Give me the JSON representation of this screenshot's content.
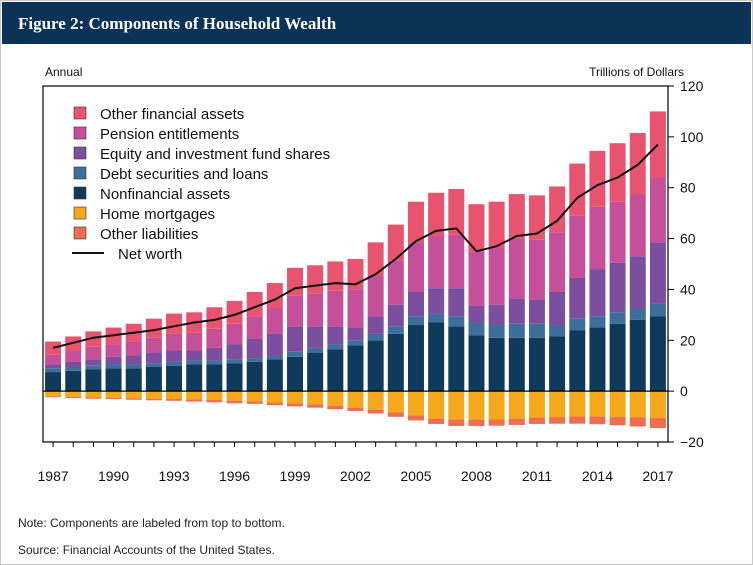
{
  "figure": {
    "title": "Figure 2: Components of Household Wealth",
    "left_unit": "Annual",
    "right_unit": "Trillions of Dollars",
    "note": "Note: Components are labeled from top to bottom.",
    "source": "Source: Financial Accounts of the United States."
  },
  "chart_data": {
    "type": "bar",
    "stacked": true,
    "title": "Figure 2: Components of Household Wealth",
    "xlabel": "",
    "ylabel": "Trillions of Dollars",
    "ylim": [
      -20,
      120
    ],
    "yticks": [
      -20,
      0,
      20,
      40,
      60,
      80,
      100,
      120
    ],
    "ytick_labels": [
      "−20",
      "0",
      "20",
      "40",
      "60",
      "80",
      "100",
      "120"
    ],
    "x_tick_labels": [
      "1987",
      "1990",
      "1993",
      "1996",
      "1999",
      "2002",
      "2005",
      "2008",
      "2011",
      "2014",
      "2017"
    ],
    "grid": false,
    "legend_position": "top-left",
    "categories": [
      1987,
      1988,
      1989,
      1990,
      1991,
      1992,
      1993,
      1994,
      1995,
      1996,
      1997,
      1998,
      1999,
      2000,
      2001,
      2002,
      2003,
      2004,
      2005,
      2006,
      2007,
      2008,
      2009,
      2010,
      2011,
      2012,
      2013,
      2014,
      2015,
      2016,
      2017
    ],
    "series": [
      {
        "name": "Other financial assets",
        "color": "#e8546f",
        "values": [
          5,
          5.5,
          6,
          6.5,
          7,
          7.5,
          8,
          8,
          8.5,
          9,
          9.5,
          10,
          11,
          11,
          11.5,
          12,
          13,
          14,
          16,
          17,
          18,
          18.5,
          18,
          17.5,
          17.5,
          18,
          20.5,
          22,
          23,
          24,
          26
        ]
      },
      {
        "name": "Pension entitlements",
        "color": "#c54f98",
        "values": [
          4,
          4.5,
          5,
          5,
          5.5,
          6,
          6.5,
          7,
          7.5,
          8,
          9,
          10,
          12,
          13,
          14,
          15,
          16,
          17.5,
          19.5,
          20.5,
          21,
          21.5,
          22.5,
          23.5,
          23.5,
          23.5,
          24.5,
          24.5,
          24,
          24.5,
          25.5
        ]
      },
      {
        "name": "Equity and investment fund shares",
        "color": "#7b4ea0",
        "values": [
          1.5,
          2,
          2.5,
          3,
          3.5,
          4,
          4.5,
          4,
          5,
          6,
          7.5,
          8.5,
          10,
          8.5,
          7,
          5,
          7,
          8.5,
          9.5,
          10,
          11,
          6.5,
          8,
          10,
          9.5,
          13,
          16,
          18.5,
          19.5,
          20.5,
          24
        ]
      },
      {
        "name": "Debt securities and loans",
        "color": "#3e6e9c",
        "values": [
          1.5,
          1.5,
          1.5,
          1.5,
          1.5,
          1.5,
          1.5,
          1.5,
          1.5,
          1.5,
          1.5,
          1.5,
          2,
          2,
          2,
          2,
          2.5,
          3,
          3.5,
          3.5,
          4,
          5,
          5,
          5.5,
          5.5,
          4.5,
          4.5,
          4.5,
          4.5,
          4.5,
          5
        ]
      },
      {
        "name": "Nonfinancial assets",
        "color": "#0f3a5c",
        "values": [
          7.5,
          8,
          8.5,
          9,
          9,
          9.5,
          10,
          10.5,
          10.5,
          11,
          11.5,
          12.5,
          13.5,
          15,
          16.5,
          18,
          20,
          22.5,
          26,
          27,
          25.5,
          22,
          21,
          21,
          21,
          21.5,
          24,
          25,
          26.5,
          28,
          29.5
        ]
      },
      {
        "name": "Home mortgages",
        "color": "#f5a81b",
        "values": [
          -2,
          -2.2,
          -2.5,
          -2.6,
          -2.8,
          -3,
          -3.1,
          -3.3,
          -3.5,
          -3.8,
          -4,
          -4.4,
          -4.8,
          -5.2,
          -5.8,
          -6.5,
          -7.3,
          -8.4,
          -9.6,
          -10.8,
          -11.2,
          -11.2,
          -11.1,
          -10.8,
          -10.4,
          -10.2,
          -10,
          -10,
          -10.2,
          -10.3,
          -10.5
        ]
      },
      {
        "name": "Other liabilities",
        "color": "#f06e50",
        "values": [
          -0.4,
          -0.5,
          -0.5,
          -0.5,
          -0.6,
          -0.6,
          -0.7,
          -0.8,
          -0.9,
          -1,
          -1,
          -1.1,
          -1.2,
          -1.3,
          -1.3,
          -1.3,
          -1.5,
          -1.7,
          -1.9,
          -2.1,
          -2.5,
          -2.5,
          -2.5,
          -2.5,
          -2.5,
          -2.6,
          -2.8,
          -3,
          -3.2,
          -3.6,
          -4
        ]
      }
    ],
    "line_series": {
      "name": "Net worth",
      "color": "#111111",
      "values": [
        17,
        19,
        21,
        22,
        23,
        24,
        25.5,
        27,
        28,
        30,
        33,
        36,
        40.5,
        41.5,
        42.5,
        42,
        46,
        52,
        59,
        63,
        64,
        55,
        57,
        61,
        62,
        67,
        76,
        81,
        84,
        89,
        97
      ]
    }
  }
}
